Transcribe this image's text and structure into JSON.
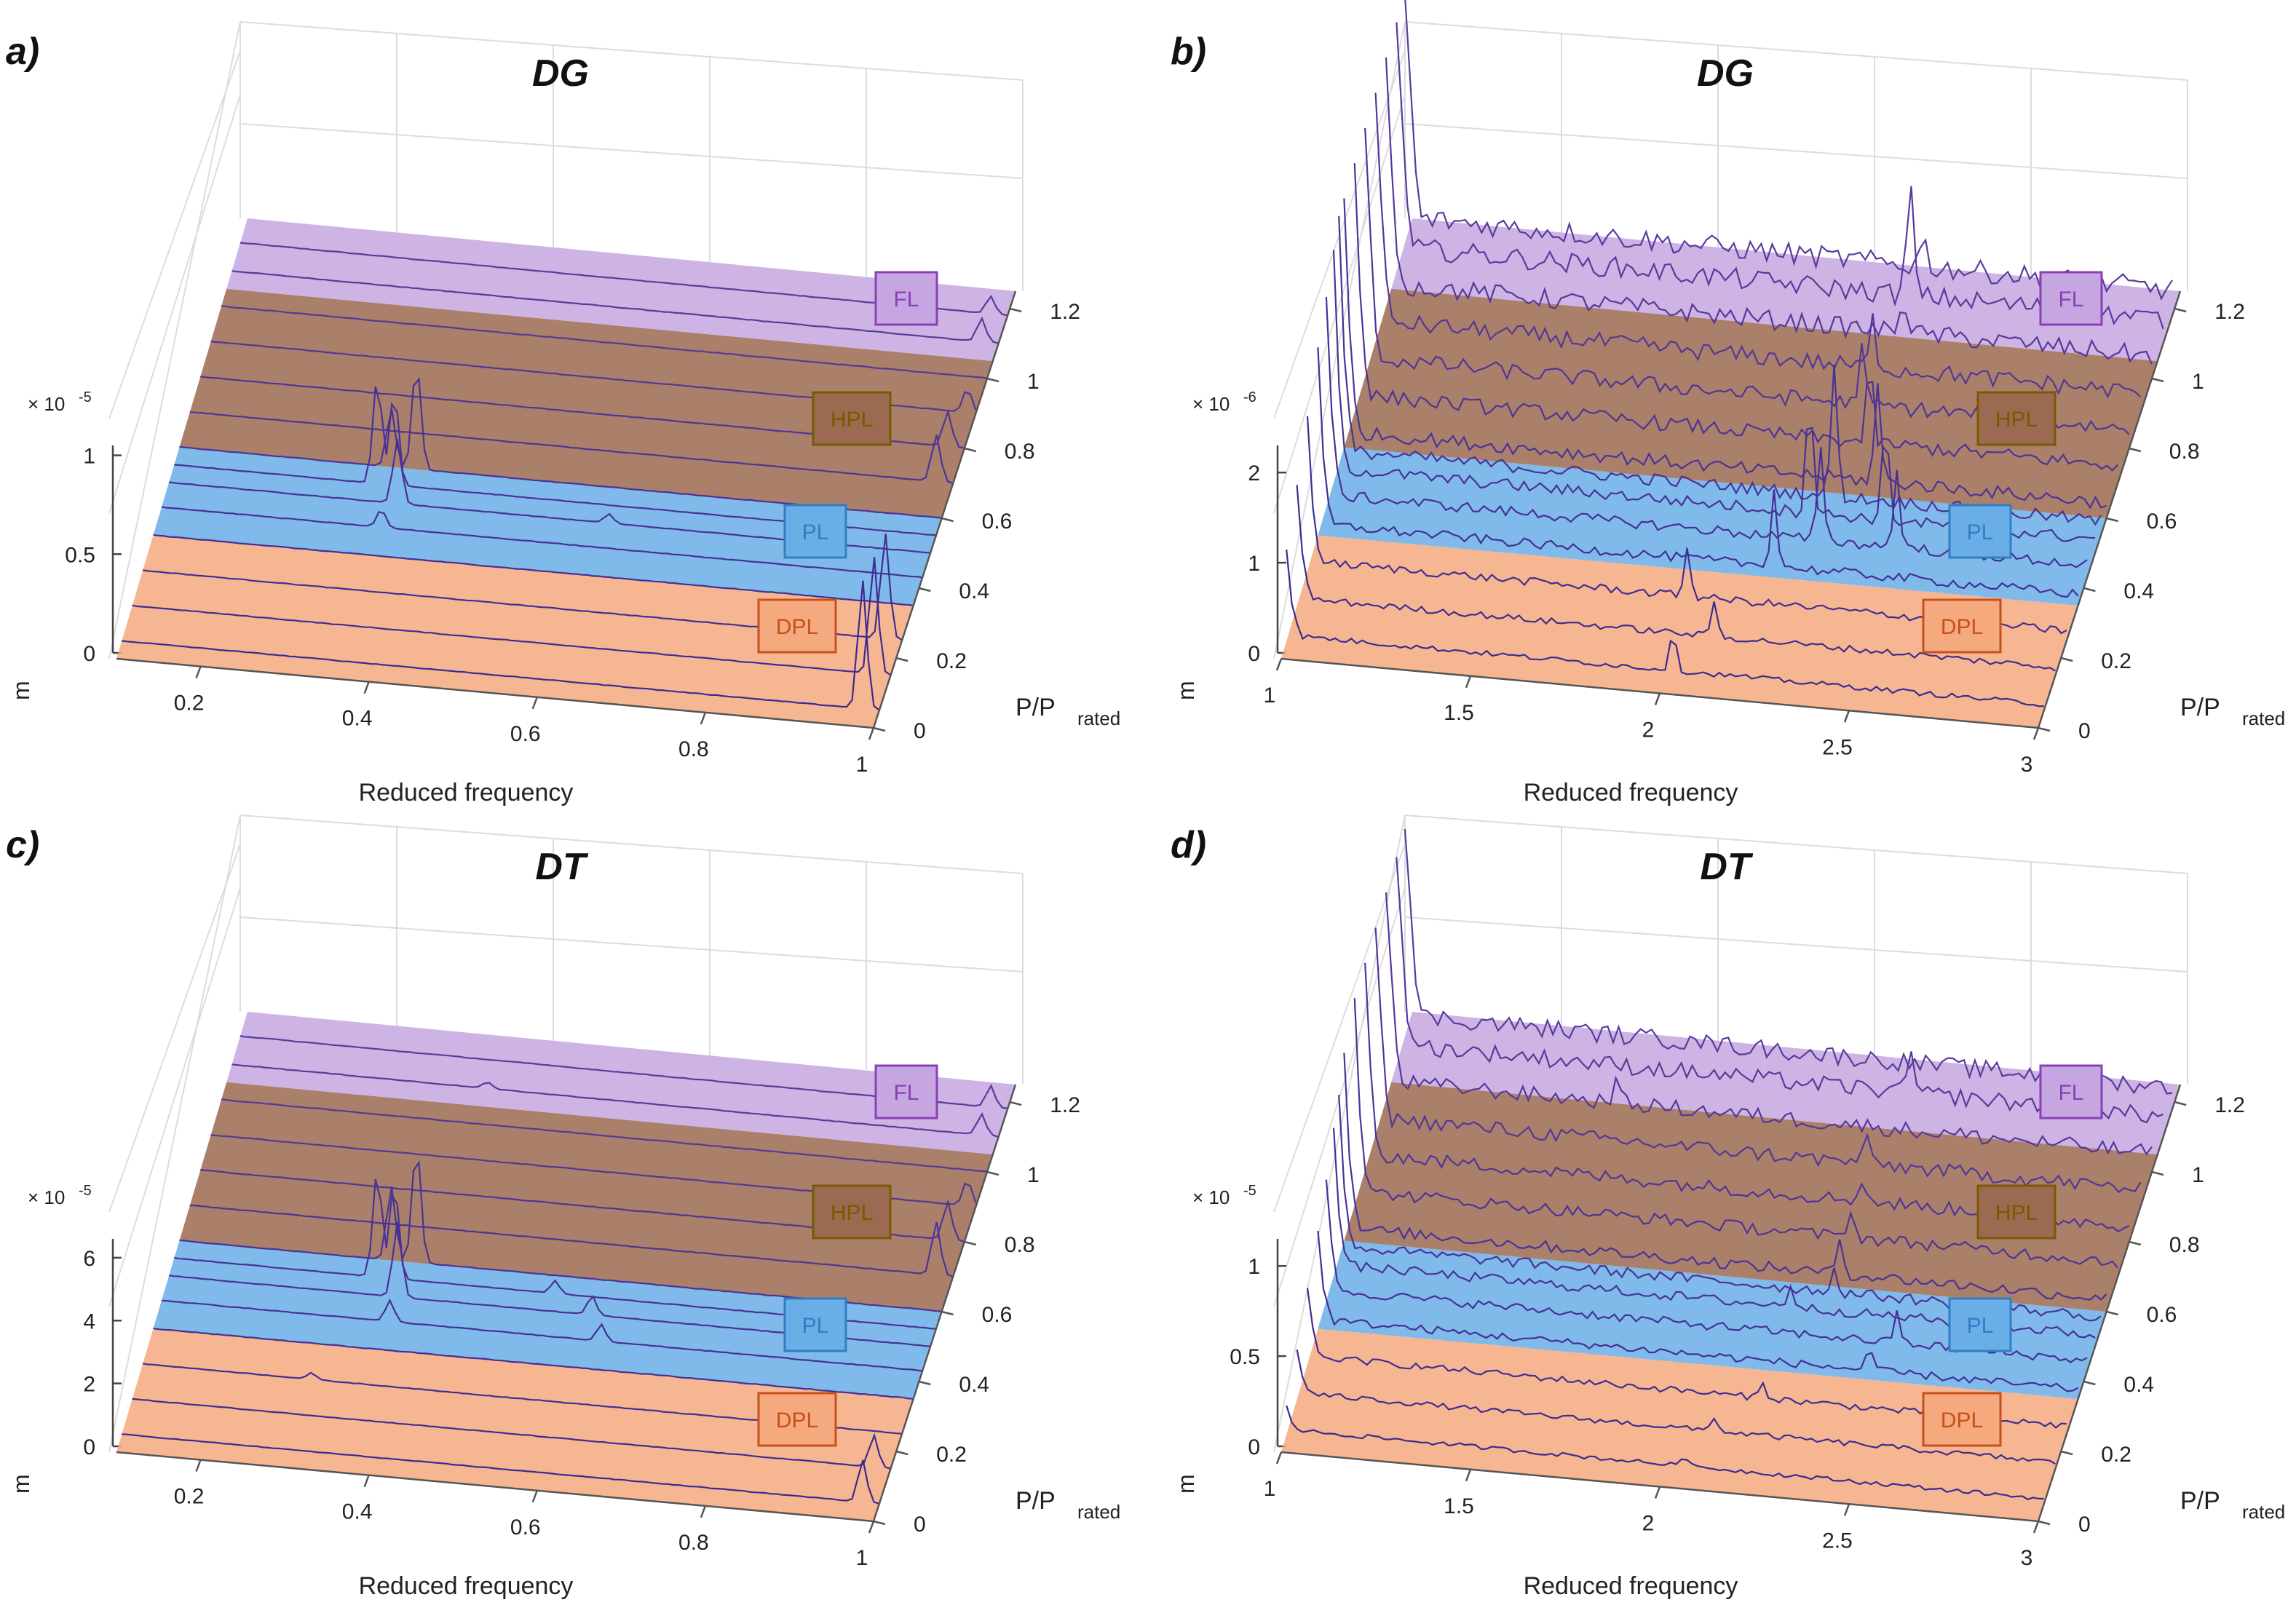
{
  "chart_data": [
    {
      "panel": "a)",
      "type": "area",
      "title": "DG",
      "xlabel": "Reduced frequency",
      "ylabel": "P/P",
      "ylabel_sub": "rated",
      "zlabel": "m",
      "z_exponent_base": "× 10",
      "z_exponent": "-5",
      "xlim": [
        0.1,
        1.0
      ],
      "ylim": [
        0,
        1.25
      ],
      "zlim": [
        0,
        1.2
      ],
      "x_ticks": [
        "0.2",
        "0.4",
        "0.6",
        "0.8",
        "1"
      ],
      "y_ticks": [
        "0",
        "0.2",
        "0.4",
        "0.6",
        "0.8",
        "1",
        "1.2"
      ],
      "z_ticks": [
        "0",
        "0.5",
        "1"
      ],
      "regions": [
        {
          "label": "DPL",
          "y_range": [
            0,
            0.35
          ],
          "color": "#f5a97f",
          "edge": "#c8501a"
        },
        {
          "label": "PL",
          "y_range": [
            0.35,
            0.6
          ],
          "color": "#6aaee8",
          "edge": "#2f7fc4"
        },
        {
          "label": "HPL",
          "y_range": [
            0.6,
            1.05
          ],
          "color": "#9b6a50",
          "edge": "#7a5a00"
        },
        {
          "label": "FL",
          "y_range": [
            1.05,
            1.25
          ],
          "color": "#c6a6e0",
          "edge": "#8a3fb8"
        }
      ],
      "series": [
        {
          "load": 0.05,
          "peaks": [
            [
              0.98,
              1.1
            ]
          ]
        },
        {
          "load": 0.15,
          "peaks": [
            [
              0.98,
              1.0
            ]
          ]
        },
        {
          "load": 0.25,
          "peaks": [
            [
              0.98,
              0.9
            ]
          ]
        },
        {
          "load": 0.35,
          "peaks": []
        },
        {
          "load": 0.43,
          "peaks": [
            [
              0.36,
              0.15
            ]
          ]
        },
        {
          "load": 0.5,
          "peaks": [
            [
              0.37,
              0.55
            ],
            [
              0.62,
              0.08
            ]
          ]
        },
        {
          "load": 0.55,
          "peaks": [
            [
              0.34,
              0.9
            ],
            [
              0.36,
              0.8
            ]
          ]
        },
        {
          "load": 0.6,
          "peaks": [
            [
              0.35,
              0.5
            ],
            [
              0.38,
              0.9
            ]
          ]
        },
        {
          "load": 0.7,
          "peaks": [
            [
              0.98,
              0.4
            ]
          ]
        },
        {
          "load": 0.8,
          "peaks": [
            [
              0.98,
              0.3
            ]
          ]
        },
        {
          "load": 0.9,
          "peaks": [
            [
              0.99,
              0.2
            ]
          ]
        },
        {
          "load": 1.0,
          "peaks": []
        },
        {
          "load": 1.1,
          "peaks": [
            [
              0.98,
              0.2
            ]
          ]
        },
        {
          "load": 1.18,
          "peaks": [
            [
              0.98,
              0.15
            ]
          ]
        }
      ]
    },
    {
      "panel": "b)",
      "type": "area",
      "title": "DG",
      "xlabel": "Reduced frequency",
      "ylabel": "P/P",
      "ylabel_sub": "rated",
      "zlabel": "m",
      "z_exponent_base": "× 10",
      "z_exponent": "-6",
      "xlim": [
        1,
        3
      ],
      "ylim": [
        0,
        1.25
      ],
      "zlim": [
        0,
        2.6
      ],
      "x_ticks": [
        "1",
        "1.5",
        "2",
        "2.5",
        "3"
      ],
      "y_ticks": [
        "0",
        "0.2",
        "0.4",
        "0.6",
        "0.8",
        "1",
        "1.2"
      ],
      "z_ticks": [
        "0",
        "1",
        "2"
      ],
      "regions": [
        {
          "label": "DPL",
          "y_range": [
            0,
            0.35
          ],
          "color": "#f5a97f",
          "edge": "#c8501a"
        },
        {
          "label": "PL",
          "y_range": [
            0.35,
            0.6
          ],
          "color": "#6aaee8",
          "edge": "#2f7fc4"
        },
        {
          "label": "HPL",
          "y_range": [
            0.6,
            1.05
          ],
          "color": "#9b6a50",
          "edge": "#7a5a00"
        },
        {
          "label": "FL",
          "y_range": [
            1.05,
            1.25
          ],
          "color": "#c6a6e0",
          "edge": "#8a3fb8"
        }
      ],
      "series": [
        {
          "load": 0.05,
          "peaks": [
            [
              1.0,
              0.6
            ],
            [
              2.02,
              0.4
            ]
          ]
        },
        {
          "load": 0.15,
          "peaks": [
            [
              1.0,
              0.8
            ],
            [
              2.1,
              0.35
            ]
          ]
        },
        {
          "load": 0.25,
          "peaks": [
            [
              1.0,
              1.0
            ],
            [
              2.0,
              0.5
            ]
          ]
        },
        {
          "load": 0.35,
          "peaks": [
            [
              1.0,
              1.2
            ],
            [
              2.2,
              0.8
            ]
          ]
        },
        {
          "load": 0.43,
          "peaks": [
            [
              1.0,
              1.4
            ],
            [
              2.3,
              1.0
            ],
            [
              2.5,
              0.8
            ]
          ]
        },
        {
          "load": 0.5,
          "peaks": [
            [
              1.0,
              1.5
            ],
            [
              2.25,
              1.3
            ],
            [
              2.45,
              1.0
            ]
          ]
        },
        {
          "load": 0.55,
          "peaks": [
            [
              1.0,
              1.7
            ],
            [
              2.3,
              1.4
            ]
          ]
        },
        {
          "load": 0.6,
          "peaks": [
            [
              1.0,
              1.8
            ],
            [
              2.4,
              1.0
            ]
          ]
        },
        {
          "load": 0.7,
          "peaks": [
            [
              1.0,
              2.0
            ],
            [
              2.35,
              0.8
            ]
          ]
        },
        {
          "load": 0.8,
          "peaks": [
            [
              1.0,
              2.1
            ],
            [
              2.3,
              0.6
            ]
          ]
        },
        {
          "load": 0.9,
          "peaks": [
            [
              1.0,
              2.2
            ],
            [
              2.3,
              0.5
            ]
          ]
        },
        {
          "load": 1.0,
          "peaks": [
            [
              1.0,
              2.3
            ],
            [
              2.35,
              0.4
            ]
          ]
        },
        {
          "load": 1.1,
          "peaks": [
            [
              1.0,
              2.4
            ],
            [
              2.34,
              1.2
            ]
          ]
        },
        {
          "load": 1.18,
          "peaks": [
            [
              1.0,
              2.5
            ],
            [
              2.35,
              0.3
            ]
          ]
        }
      ]
    },
    {
      "panel": "c)",
      "type": "area",
      "title": "DT",
      "xlabel": "Reduced frequency",
      "ylabel": "P/P",
      "ylabel_sub": "rated",
      "zlabel": "m",
      "z_exponent_base": "× 10",
      "z_exponent": "-5",
      "xlim": [
        0.1,
        1.0
      ],
      "ylim": [
        0,
        1.25
      ],
      "zlim": [
        0,
        7
      ],
      "x_ticks": [
        "0.2",
        "0.4",
        "0.6",
        "0.8",
        "1"
      ],
      "y_ticks": [
        "0",
        "0.2",
        "0.4",
        "0.6",
        "0.8",
        "1",
        "1.2"
      ],
      "z_ticks": [
        "0",
        "2",
        "4",
        "6"
      ],
      "regions": [
        {
          "label": "DPL",
          "y_range": [
            0,
            0.35
          ],
          "color": "#f5a97f",
          "edge": "#c8501a"
        },
        {
          "label": "PL",
          "y_range": [
            0.35,
            0.6
          ],
          "color": "#6aaee8",
          "edge": "#2f7fc4"
        },
        {
          "label": "HPL",
          "y_range": [
            0.6,
            1.05
          ],
          "color": "#9b6a50",
          "edge": "#7a5a00"
        },
        {
          "label": "FL",
          "y_range": [
            1.05,
            1.25
          ],
          "color": "#c6a6e0",
          "edge": "#8a3fb8"
        }
      ],
      "series": [
        {
          "load": 0.05,
          "peaks": [
            [
              0.98,
              2.0
            ]
          ]
        },
        {
          "load": 0.15,
          "peaks": [
            [
              0.98,
              1.5
            ]
          ]
        },
        {
          "load": 0.25,
          "peaks": [
            [
              0.3,
              0.3
            ]
          ]
        },
        {
          "load": 0.35,
          "peaks": []
        },
        {
          "load": 0.43,
          "peaks": [
            [
              0.37,
              1.0
            ],
            [
              0.62,
              0.8
            ]
          ]
        },
        {
          "load": 0.5,
          "peaks": [
            [
              0.37,
              3.5
            ],
            [
              0.6,
              0.9
            ]
          ]
        },
        {
          "load": 0.55,
          "peaks": [
            [
              0.34,
              5.0
            ],
            [
              0.36,
              4.5
            ],
            [
              0.55,
              0.6
            ]
          ]
        },
        {
          "load": 0.6,
          "peaks": [
            [
              0.35,
              3.5
            ],
            [
              0.38,
              5.5
            ]
          ]
        },
        {
          "load": 0.7,
          "peaks": [
            [
              0.98,
              2.5
            ]
          ]
        },
        {
          "load": 0.8,
          "peaks": [
            [
              0.98,
              1.8
            ]
          ]
        },
        {
          "load": 0.9,
          "peaks": [
            [
              0.99,
              1.2
            ]
          ]
        },
        {
          "load": 1.0,
          "peaks": []
        },
        {
          "load": 1.1,
          "peaks": [
            [
              0.98,
              1.0
            ],
            [
              0.4,
              0.3
            ]
          ]
        },
        {
          "load": 1.18,
          "peaks": [
            [
              0.98,
              1.0
            ]
          ]
        }
      ]
    },
    {
      "panel": "d)",
      "type": "area",
      "title": "DT",
      "xlabel": "Reduced frequency",
      "ylabel": "P/P",
      "ylabel_sub": "rated",
      "zlabel": "m",
      "z_exponent_base": "× 10",
      "z_exponent": "-5",
      "xlim": [
        1,
        3
      ],
      "ylim": [
        0,
        1.25
      ],
      "zlim": [
        0,
        1.4
      ],
      "x_ticks": [
        "1",
        "1.5",
        "2",
        "2.5",
        "3"
      ],
      "y_ticks": [
        "0",
        "0.2",
        "0.4",
        "0.6",
        "0.8",
        "1",
        "1.2"
      ],
      "z_ticks": [
        "0",
        "0.5",
        "1"
      ],
      "regions": [
        {
          "label": "DPL",
          "y_range": [
            0,
            0.35
          ],
          "color": "#f5a97f",
          "edge": "#c8501a"
        },
        {
          "label": "PL",
          "y_range": [
            0.35,
            0.6
          ],
          "color": "#6aaee8",
          "edge": "#2f7fc4"
        },
        {
          "label": "HPL",
          "y_range": [
            0.6,
            1.05
          ],
          "color": "#9b6a50",
          "edge": "#7a5a00"
        },
        {
          "label": "FL",
          "y_range": [
            1.05,
            1.25
          ],
          "color": "#c6a6e0",
          "edge": "#8a3fb8"
        }
      ],
      "series": [
        {
          "load": 0.05,
          "peaks": [
            [
              1.0,
              0.1
            ],
            [
              2.05,
              0.08
            ]
          ]
        },
        {
          "load": 0.15,
          "peaks": [
            [
              1.0,
              0.2
            ],
            [
              2.1,
              0.1
            ]
          ]
        },
        {
          "load": 0.25,
          "peaks": [
            [
              1.0,
              0.3
            ],
            [
              2.2,
              0.1
            ]
          ]
        },
        {
          "load": 0.35,
          "peaks": [
            [
              1.0,
              0.4
            ],
            [
              2.45,
              0.15
            ]
          ]
        },
        {
          "load": 0.43,
          "peaks": [
            [
              1.0,
              0.5
            ],
            [
              2.5,
              0.2
            ]
          ]
        },
        {
          "load": 0.5,
          "peaks": [
            [
              1.0,
              0.6
            ],
            [
              2.2,
              0.15
            ]
          ]
        },
        {
          "load": 0.55,
          "peaks": [
            [
              1.0,
              0.7
            ],
            [
              2.3,
              0.15
            ]
          ]
        },
        {
          "load": 0.6,
          "peaks": [
            [
              1.0,
              0.8
            ],
            [
              2.3,
              0.25
            ]
          ]
        },
        {
          "load": 0.7,
          "peaks": [
            [
              1.0,
              0.9
            ],
            [
              2.3,
              0.2
            ]
          ]
        },
        {
          "load": 0.8,
          "peaks": [
            [
              1.0,
              1.0
            ],
            [
              2.3,
              0.15
            ]
          ]
        },
        {
          "load": 0.9,
          "peaks": [
            [
              1.0,
              1.1
            ],
            [
              2.28,
              0.2
            ]
          ]
        },
        {
          "load": 1.0,
          "peaks": [
            [
              1.0,
              1.2
            ],
            [
              1.6,
              0.15
            ]
          ]
        },
        {
          "load": 1.1,
          "peaks": [
            [
              1.0,
              1.25
            ],
            [
              2.34,
              0.3
            ]
          ]
        },
        {
          "load": 1.18,
          "peaks": [
            [
              1.0,
              1.3
            ],
            [
              1.75,
              0.1
            ]
          ]
        }
      ]
    }
  ]
}
